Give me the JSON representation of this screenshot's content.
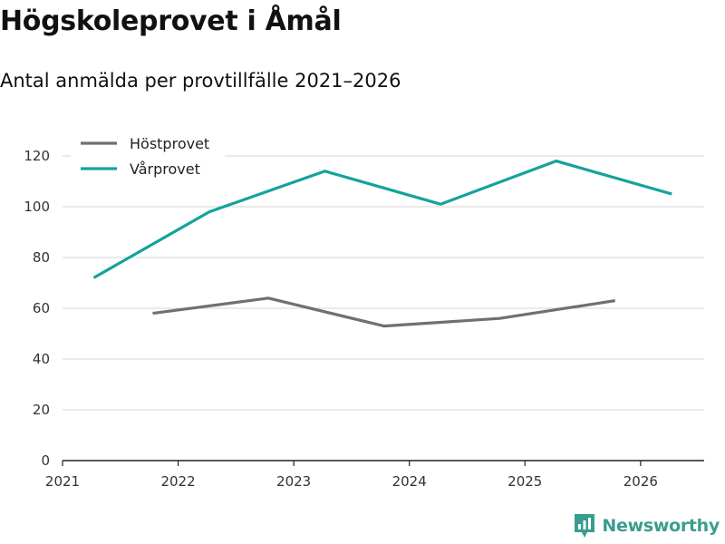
{
  "header": {
    "title": "Högskoleprovet i Åmål",
    "subtitle": "Antal anmälda per provtillfälle 2021–2026"
  },
  "brand": {
    "name": "Newsworthy",
    "icon": "bar-chart-logo-icon",
    "color": "#3a9d8f"
  },
  "chart_data": {
    "type": "line",
    "title": "Högskoleprovet i Åmål",
    "subtitle": "Antal anmälda per provtillfälle 2021–2026",
    "xlabel": "",
    "ylabel": "",
    "xlim": [
      2021,
      2026.55
    ],
    "ylim": [
      0,
      120
    ],
    "x_ticks": [
      2021,
      2022,
      2023,
      2024,
      2025,
      2026
    ],
    "y_ticks": [
      0,
      20,
      40,
      60,
      80,
      100,
      120
    ],
    "grid": "horizontal",
    "legend_position": "top-left",
    "series": [
      {
        "name": "Höstprovet",
        "color": "#707070",
        "x": [
          2021.78,
          2022.78,
          2023.78,
          2024.78,
          2025.78
        ],
        "values": [
          58,
          64,
          53,
          56,
          63
        ]
      },
      {
        "name": "Vårprovet",
        "color": "#14a39a",
        "x": [
          2021.27,
          2022.27,
          2023.27,
          2024.27,
          2025.27,
          2026.27
        ],
        "values": [
          72,
          98,
          114,
          101,
          118,
          105
        ]
      }
    ]
  }
}
